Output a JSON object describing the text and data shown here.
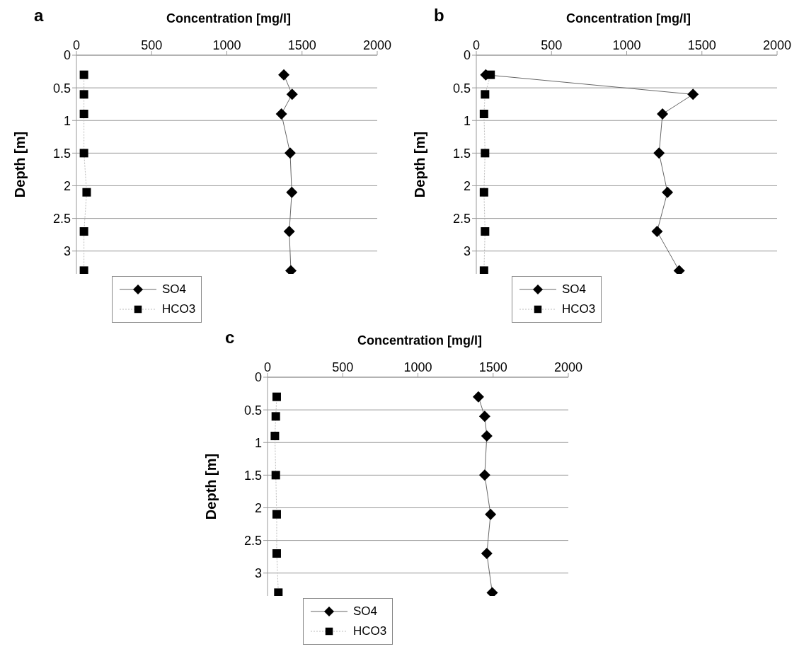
{
  "chart_data": [
    {
      "type": "line",
      "title": "a",
      "xlabel": "Concentration [mg/l]",
      "ylabel": "Depth [m]",
      "xlim": [
        0,
        2000
      ],
      "xticks": [
        0,
        500,
        1000,
        1500,
        2000
      ],
      "ylim": [
        3.35,
        0
      ],
      "yticks": [
        0,
        0.5,
        1,
        1.5,
        2,
        2.5,
        3
      ],
      "grid": "y",
      "legend": "bottom left",
      "series": [
        {
          "name": "SO4",
          "color": "#000000",
          "marker": "diamond",
          "line_style": "solid",
          "x": [
            1379,
            1434,
            1363,
            1421,
            1432,
            1415,
            1426
          ],
          "values": [
            0.3,
            0.6,
            0.9,
            1.5,
            2.1,
            2.7,
            3.3
          ]
        },
        {
          "name": "HCO3",
          "color": "#000000",
          "marker": "square",
          "line_style": "dotted",
          "x": [
            50,
            50,
            50,
            50,
            68,
            50,
            50
          ],
          "values": [
            0.3,
            0.6,
            0.9,
            1.5,
            2.1,
            2.7,
            3.3
          ]
        }
      ]
    },
    {
      "type": "line",
      "title": "b",
      "xlabel": "Concentration [mg/l]",
      "ylabel": "Depth [m]",
      "xlim": [
        0,
        2000
      ],
      "xticks": [
        0,
        500,
        1000,
        1500,
        2000
      ],
      "ylim": [
        3.35,
        0
      ],
      "yticks": [
        0,
        0.5,
        1,
        1.5,
        2,
        2.5,
        3
      ],
      "grid": "y",
      "legend": "bottom left",
      "series": [
        {
          "name": "SO4",
          "color": "#000000",
          "marker": "diamond",
          "line_style": "solid",
          "x": [
            63,
            1441,
            1238,
            1215,
            1271,
            1202,
            1349
          ],
          "values": [
            0.3,
            0.6,
            0.9,
            1.5,
            2.1,
            2.7,
            3.3
          ]
        },
        {
          "name": "HCO3",
          "color": "#000000",
          "marker": "square",
          "line_style": "dotted",
          "x": [
            95,
            58,
            51,
            58,
            51,
            58,
            51
          ],
          "values": [
            0.3,
            0.6,
            0.9,
            1.5,
            2.1,
            2.7,
            3.3
          ]
        }
      ]
    },
    {
      "type": "line",
      "title": "c",
      "xlabel": "Concentration [mg/l]",
      "ylabel": "Depth [m]",
      "xlim": [
        0,
        2000
      ],
      "xticks": [
        0,
        500,
        1000,
        1500,
        2000
      ],
      "ylim": [
        3.35,
        0
      ],
      "yticks": [
        0,
        0.5,
        1,
        1.5,
        2,
        2.5,
        3
      ],
      "grid": "y",
      "legend": "bottom left",
      "series": [
        {
          "name": "SO4",
          "color": "#000000",
          "marker": "diamond",
          "line_style": "solid",
          "x": [
            1402,
            1444,
            1458,
            1444,
            1483,
            1458,
            1494
          ],
          "values": [
            0.3,
            0.6,
            0.9,
            1.5,
            2.1,
            2.7,
            3.3
          ]
        },
        {
          "name": "HCO3",
          "color": "#000000",
          "marker": "square",
          "line_style": "dotted",
          "x": [
            61,
            55,
            49,
            55,
            61,
            61,
            72
          ],
          "values": [
            0.3,
            0.6,
            0.9,
            1.5,
            2.1,
            2.7,
            3.3
          ]
        }
      ]
    }
  ]
}
